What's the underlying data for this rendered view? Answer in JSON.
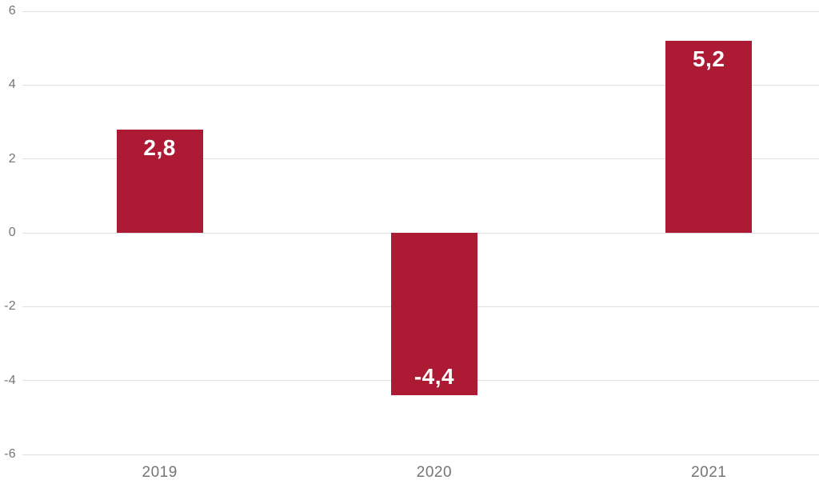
{
  "chart_data": {
    "type": "bar",
    "categories": [
      "2019",
      "2020",
      "2021"
    ],
    "values": [
      2.8,
      -4.4,
      5.2
    ],
    "value_labels": [
      "2,8",
      "-4,4",
      "5,2"
    ],
    "ylim": [
      -6,
      6
    ],
    "yticks": [
      6,
      4,
      2,
      0,
      -2,
      -4,
      -6
    ],
    "ytick_labels": [
      "6",
      "4",
      "2",
      "0",
      "-2",
      "-4",
      "-6"
    ],
    "grid": true,
    "legend": "none",
    "title": "",
    "xlabel": "",
    "ylabel": "",
    "bar_color": "#AC1B33",
    "value_label_color": "#FFFFFF",
    "axis_label_color": "#757575",
    "gridline_color": "#E0E0E0",
    "background_color": "#FFFFFF"
  }
}
